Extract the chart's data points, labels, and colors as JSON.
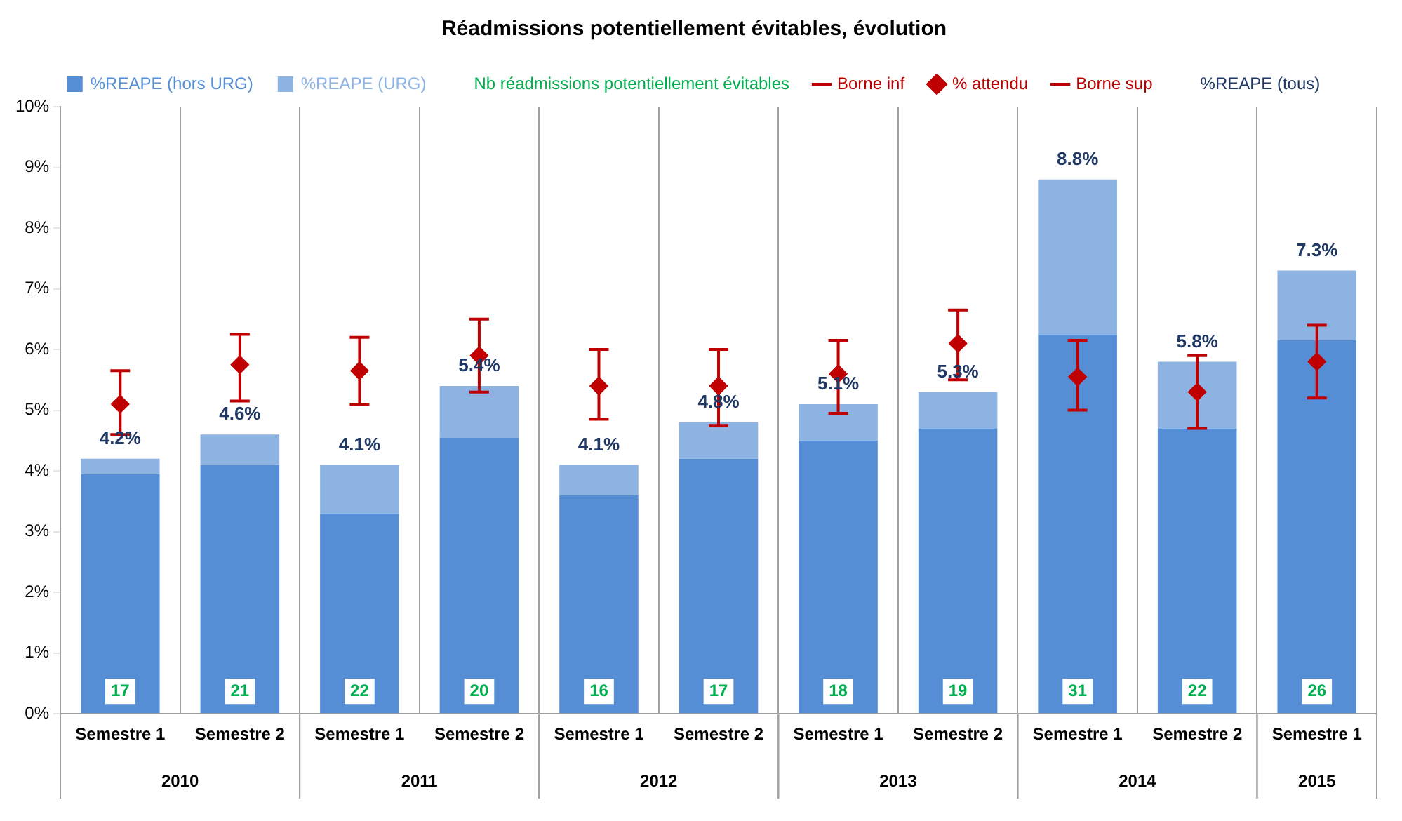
{
  "chart_data": {
    "type": "bar",
    "title": "Réadmissions potentiellement évitables, évolution",
    "categories": [
      "Semestre 1",
      "Semestre 2",
      "Semestre 1",
      "Semestre 2",
      "Semestre 1",
      "Semestre 2",
      "Semestre 1",
      "Semestre 2",
      "Semestre 1",
      "Semestre 2",
      "Semestre 1"
    ],
    "stacked": true,
    "series": [
      {
        "name": "%REAPE (hors URG)",
        "color": "#558ed5",
        "values": [
          3.95,
          4.1,
          3.3,
          4.55,
          3.6,
          4.2,
          4.5,
          4.7,
          6.25,
          4.7,
          6.15
        ]
      },
      {
        "name": "%REAPE (URG)",
        "color": "#8db3e2",
        "values": [
          0.25,
          0.5,
          0.8,
          0.85,
          0.5,
          0.6,
          0.6,
          0.6,
          2.55,
          1.1,
          1.15
        ]
      },
      {
        "name": "% attendu",
        "type": "scatter",
        "marker": "diamond",
        "color": "#c00000",
        "values": [
          5.1,
          5.75,
          5.65,
          5.9,
          5.4,
          5.4,
          5.6,
          6.1,
          5.55,
          5.3,
          5.8
        ],
        "errors": [
          [
            4.6,
            5.65
          ],
          [
            5.15,
            6.25
          ],
          [
            5.1,
            6.2
          ],
          [
            5.3,
            6.5
          ],
          [
            4.85,
            6.0
          ],
          [
            4.75,
            6.0
          ],
          [
            4.95,
            6.15
          ],
          [
            5.5,
            6.65
          ],
          [
            5.0,
            6.15
          ],
          [
            4.7,
            5.9
          ],
          [
            5.2,
            6.4
          ]
        ]
      }
    ],
    "totals": [
      "4.2%",
      "4.6%",
      "4.1%",
      "5.4%",
      "4.1%",
      "4.8%",
      "5.1%",
      "5.3%",
      "8.8%",
      "5.8%",
      "7.3%"
    ],
    "ylim": [
      0,
      10
    ],
    "yticks": [
      {
        "value": 0,
        "label": "0%"
      },
      {
        "value": 1,
        "label": "1%"
      },
      {
        "value": 2,
        "label": "2%"
      },
      {
        "value": 3,
        "label": "3%"
      },
      {
        "value": 4,
        "label": "4%"
      },
      {
        "value": 5,
        "label": "5%"
      },
      {
        "value": 6,
        "label": "6%"
      },
      {
        "value": 7,
        "label": "7%"
      },
      {
        "value": 8,
        "label": "8%"
      },
      {
        "value": 9,
        "label": "9%"
      },
      {
        "value": 10,
        "label": "10%"
      }
    ],
    "grid": "x",
    "legend": "top",
    "annotations": [
      "Nb réadmissions potentiellement évitables",
      "Borne inf",
      "Borne sup",
      "%REAPE (tous)",
      "2010",
      "2011",
      "2012",
      "2013",
      "2014",
      "2015",
      "17",
      "21",
      "22",
      "20",
      "16",
      "17",
      "18",
      "19",
      "31",
      "22",
      "26"
    ]
  }
}
